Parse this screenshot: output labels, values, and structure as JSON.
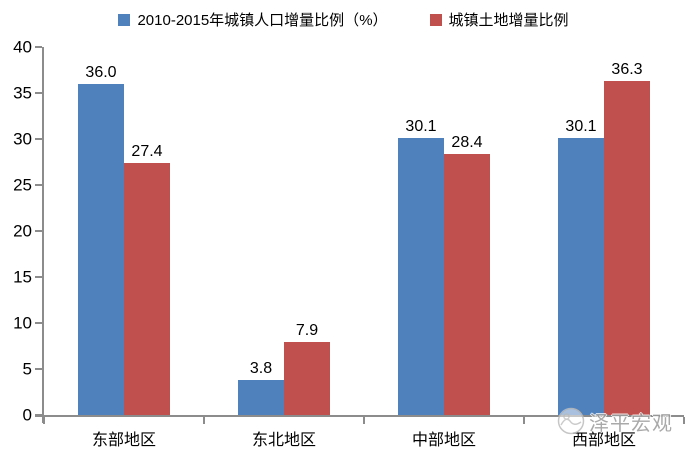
{
  "chart_data": {
    "type": "bar",
    "title": "",
    "xlabel": "",
    "ylabel": "",
    "categories": [
      "东部地区",
      "东北地区",
      "中部地区",
      "西部地区"
    ],
    "series": [
      {
        "name": "2010-2015年城镇人口增量比例（%）",
        "color": "#4F81BD",
        "values": [
          36.0,
          3.8,
          30.1,
          30.1
        ],
        "labels": [
          "36.0",
          "3.8",
          "30.1",
          "30.1"
        ]
      },
      {
        "name": "城镇土地增量比例",
        "color": "#C0504D",
        "values": [
          27.4,
          7.9,
          28.4,
          36.3
        ],
        "labels": [
          "27.4",
          "7.9",
          "28.4",
          "36.3"
        ]
      }
    ],
    "ylim": [
      0,
      40
    ],
    "yticks": [
      0,
      5,
      10,
      15,
      20,
      25,
      30,
      35,
      40
    ],
    "grid": false,
    "legend_position": "top"
  },
  "watermark": {
    "text": "泽平宏观"
  },
  "colors": {
    "axis": "#8C8C8C",
    "text": "#000000",
    "watermark": "#9B9B9B",
    "background": "#FFFFFF"
  }
}
